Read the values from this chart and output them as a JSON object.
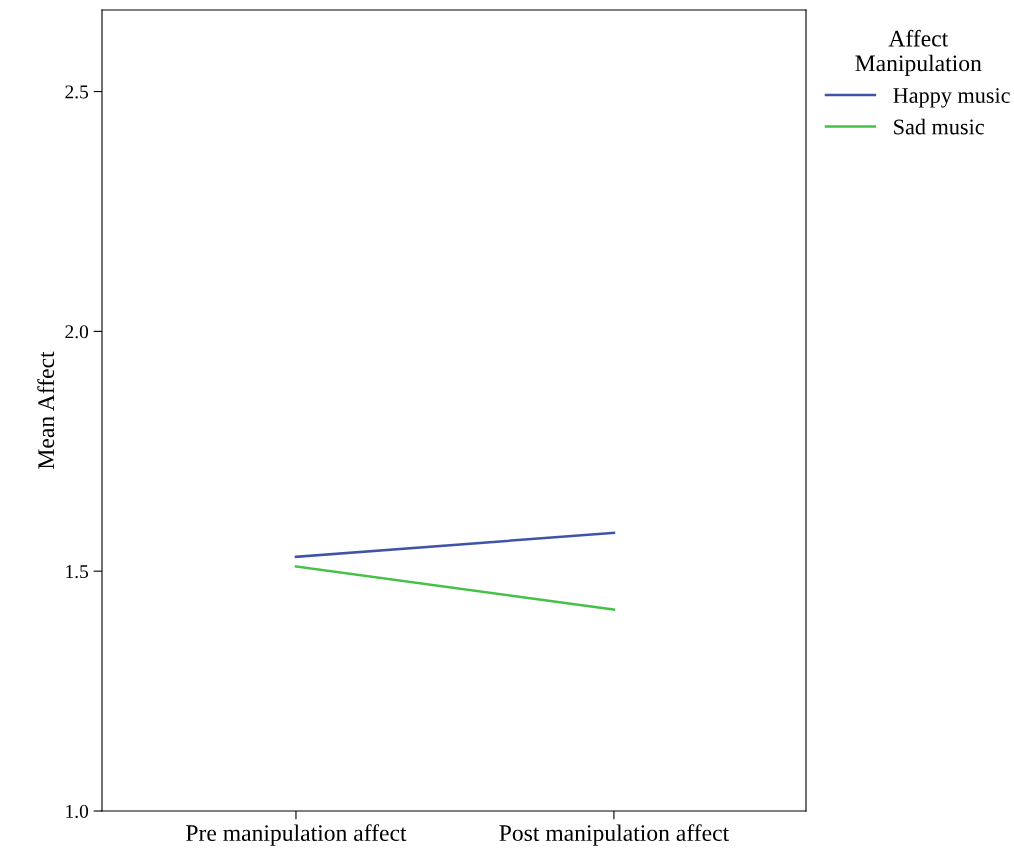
{
  "chart_data": {
    "type": "line",
    "xlabel": null,
    "ylabel": "Mean Affect",
    "legend_title": "Affect\nManipulation",
    "categories": [
      "Pre manipulation affect",
      "Post manipulation affect"
    ],
    "series": [
      {
        "name": "Happy music",
        "color": "#3f54a8",
        "values": [
          1.53,
          1.58
        ]
      },
      {
        "name": "Sad music",
        "color": "#45c14a",
        "values": [
          1.51,
          1.42
        ]
      }
    ],
    "ylim": [
      1.0,
      2.67
    ],
    "yticks": [
      {
        "value": 1.0,
        "label": "1.0"
      },
      {
        "value": 1.5,
        "label": "1.5"
      },
      {
        "value": 2.0,
        "label": "2.0"
      },
      {
        "value": 2.5,
        "label": "2.5"
      }
    ],
    "grid": false,
    "legend": "top right",
    "marker": "none",
    "line_style": "solid"
  }
}
